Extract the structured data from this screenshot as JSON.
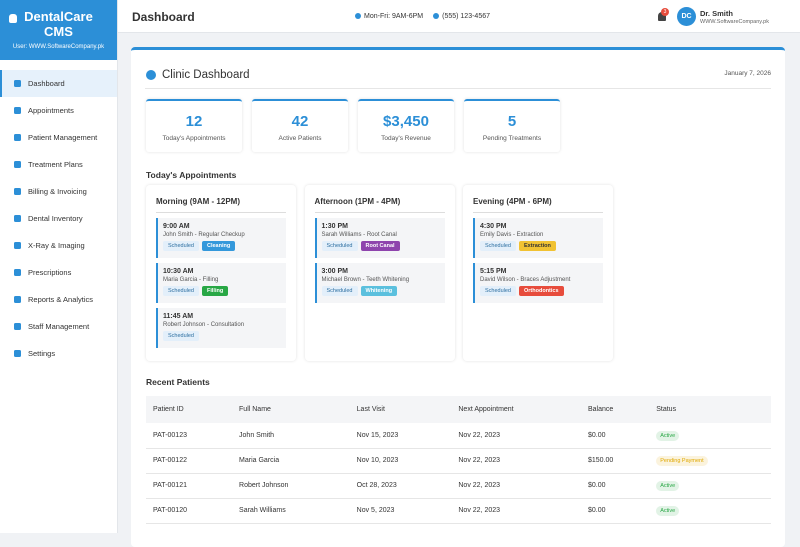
{
  "sidebar": {
    "brand": "DentalCare CMS",
    "user": "User: WWW.SoftwareCompany.pk",
    "menu": [
      "Dashboard",
      "Appointments",
      "Patient Management",
      "Treatment Plans",
      "Billing & Invoicing",
      "Dental Inventory",
      "X-Ray & Imaging",
      "Prescriptions",
      "Reports & Analytics",
      "Staff Management",
      "Settings"
    ]
  },
  "header": {
    "title": "Dashboard",
    "hours": "Mon-Fri: 9AM-6PM",
    "phone": "(555) 123-4567",
    "notifications": "3",
    "avatar": "DC",
    "user_name": "Dr. Smith",
    "user_site": "WWW.SoftwareCompany.pk"
  },
  "panel": {
    "title": "Clinic Dashboard",
    "date": "January 7, 2026"
  },
  "stats": [
    {
      "value": "12",
      "label": "Today's Appointments"
    },
    {
      "value": "42",
      "label": "Active Patients"
    },
    {
      "value": "$3,450",
      "label": "Today's Revenue"
    },
    {
      "value": "5",
      "label": "Pending Treatments"
    }
  ],
  "appointments": {
    "title": "Today's Appointments",
    "columns": [
      {
        "title": "Morning (9AM - 12PM)",
        "items": [
          {
            "time": "9:00 AM",
            "desc": "John Smith - Regular Checkup",
            "status": "Scheduled",
            "tag": "Cleaning",
            "color": "#3498db"
          },
          {
            "time": "10:30 AM",
            "desc": "Maria Garcia - Filling",
            "status": "Scheduled",
            "tag": "Filling",
            "color": "#28a745"
          },
          {
            "time": "11:45 AM",
            "desc": "Robert Johnson - Consultation",
            "status": "Scheduled"
          }
        ]
      },
      {
        "title": "Afternoon (1PM - 4PM)",
        "items": [
          {
            "time": "1:30 PM",
            "desc": "Sarah Williams - Root Canal",
            "status": "Scheduled",
            "tag": "Root Canal",
            "color": "#8e44ad"
          },
          {
            "time": "3:00 PM",
            "desc": "Michael Brown - Teeth Whitening",
            "status": "Scheduled",
            "tag": "Whitening",
            "color": "#5bc0de"
          }
        ]
      },
      {
        "title": "Evening (4PM - 6PM)",
        "items": [
          {
            "time": "4:30 PM",
            "desc": "Emily Davis - Extraction",
            "status": "Scheduled",
            "tag": "Extraction",
            "color": "#f1c232"
          },
          {
            "time": "5:15 PM",
            "desc": "David Wilson - Braces Adjustment",
            "status": "Scheduled",
            "tag": "Orthodontics",
            "color": "#e74c3c"
          }
        ]
      }
    ]
  },
  "patients": {
    "title": "Recent Patients",
    "headers": [
      "Patient ID",
      "Full Name",
      "Last Visit",
      "Next Appointment",
      "Balance",
      "Status"
    ],
    "rows": [
      {
        "cells": [
          "PAT-00123",
          "John Smith",
          "Nov 15, 2023",
          "Nov 22, 2023",
          "$0.00"
        ],
        "status": "Active",
        "status_color": "#28a745"
      },
      {
        "cells": [
          "PAT-00122",
          "Maria Garcia",
          "Nov 10, 2023",
          "Nov 22, 2023",
          "$150.00"
        ],
        "status": "Pending Payment",
        "status_color": "#e0a800"
      },
      {
        "cells": [
          "PAT-00121",
          "Robert Johnson",
          "Oct 28, 2023",
          "Nov 22, 2023",
          "$0.00"
        ],
        "status": "Active",
        "status_color": "#28a745"
      },
      {
        "cells": [
          "PAT-00120",
          "Sarah Williams",
          "Nov 5, 2023",
          "Nov 22, 2023",
          "$0.00"
        ],
        "status": "Active",
        "status_color": "#28a745"
      }
    ]
  }
}
